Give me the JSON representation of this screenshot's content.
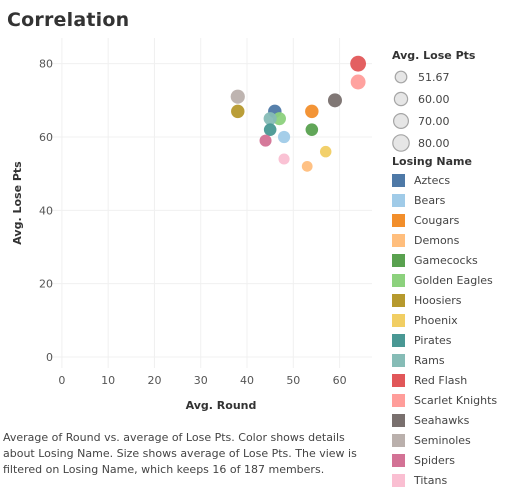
{
  "title": "Correlation",
  "caption": "Average of Round vs. average of Lose Pts.  Color shows details about Losing Name.  Size shows average of Lose Pts. The view is filtered on Losing Name, which keeps 16 of 187 members.",
  "size_legend": {
    "title": "Avg. Lose Pts",
    "items": [
      "51.67",
      "60.00",
      "70.00",
      "80.00"
    ]
  },
  "color_legend": {
    "title": "Losing Name",
    "items": [
      {
        "label": "Aztecs",
        "color": "#4e79a7"
      },
      {
        "label": "Bears",
        "color": "#a0cbe8"
      },
      {
        "label": "Cougars",
        "color": "#f28e2b"
      },
      {
        "label": "Demons",
        "color": "#ffbe7d"
      },
      {
        "label": "Gamecocks",
        "color": "#59a14f"
      },
      {
        "label": "Golden Eagles",
        "color": "#8cd17d"
      },
      {
        "label": "Hoosiers",
        "color": "#b6992d"
      },
      {
        "label": "Phoenix",
        "color": "#f1ce63"
      },
      {
        "label": "Pirates",
        "color": "#499894"
      },
      {
        "label": "Rams",
        "color": "#86bcb6"
      },
      {
        "label": "Red Flash",
        "color": "#e15759"
      },
      {
        "label": "Scarlet Knights",
        "color": "#ff9d9a"
      },
      {
        "label": "Seahawks",
        "color": "#79706e"
      },
      {
        "label": "Seminoles",
        "color": "#bab0ac"
      },
      {
        "label": "Spiders",
        "color": "#d37295"
      },
      {
        "label": "Titans",
        "color": "#fabfd2"
      }
    ]
  },
  "chart_data": {
    "type": "scatter",
    "title": "Correlation",
    "xlabel": "Avg. Round",
    "ylabel": "Avg. Lose Pts",
    "xlim": [
      -3,
      67
    ],
    "ylim": [
      -3,
      87
    ],
    "xticks": [
      "0",
      "10",
      "20",
      "30",
      "40",
      "50",
      "60"
    ],
    "yticks": [
      "0",
      "20",
      "40",
      "60",
      "80"
    ],
    "grid": true,
    "legend_position": "right",
    "points": [
      {
        "name": "Aztecs",
        "x": 46,
        "y": 67,
        "size": 67
      },
      {
        "name": "Bears",
        "x": 48,
        "y": 60,
        "size": 60
      },
      {
        "name": "Cougars",
        "x": 54,
        "y": 67,
        "size": 67
      },
      {
        "name": "Demons",
        "x": 53,
        "y": 52,
        "size": 52
      },
      {
        "name": "Gamecocks",
        "x": 54,
        "y": 62,
        "size": 62
      },
      {
        "name": "Golden Eagles",
        "x": 47,
        "y": 65,
        "size": 65
      },
      {
        "name": "Hoosiers",
        "x": 38,
        "y": 67,
        "size": 67
      },
      {
        "name": "Phoenix",
        "x": 57,
        "y": 56,
        "size": 56
      },
      {
        "name": "Pirates",
        "x": 45,
        "y": 62,
        "size": 62
      },
      {
        "name": "Rams",
        "x": 45,
        "y": 65,
        "size": 65
      },
      {
        "name": "Red Flash",
        "x": 64,
        "y": 80,
        "size": 80
      },
      {
        "name": "Scarlet Knights",
        "x": 64,
        "y": 75,
        "size": 75
      },
      {
        "name": "Seahawks",
        "x": 59,
        "y": 70,
        "size": 70
      },
      {
        "name": "Seminoles",
        "x": 38,
        "y": 71,
        "size": 71
      },
      {
        "name": "Spiders",
        "x": 44,
        "y": 59,
        "size": 59
      },
      {
        "name": "Titans",
        "x": 48,
        "y": 54,
        "size": 54
      }
    ]
  }
}
